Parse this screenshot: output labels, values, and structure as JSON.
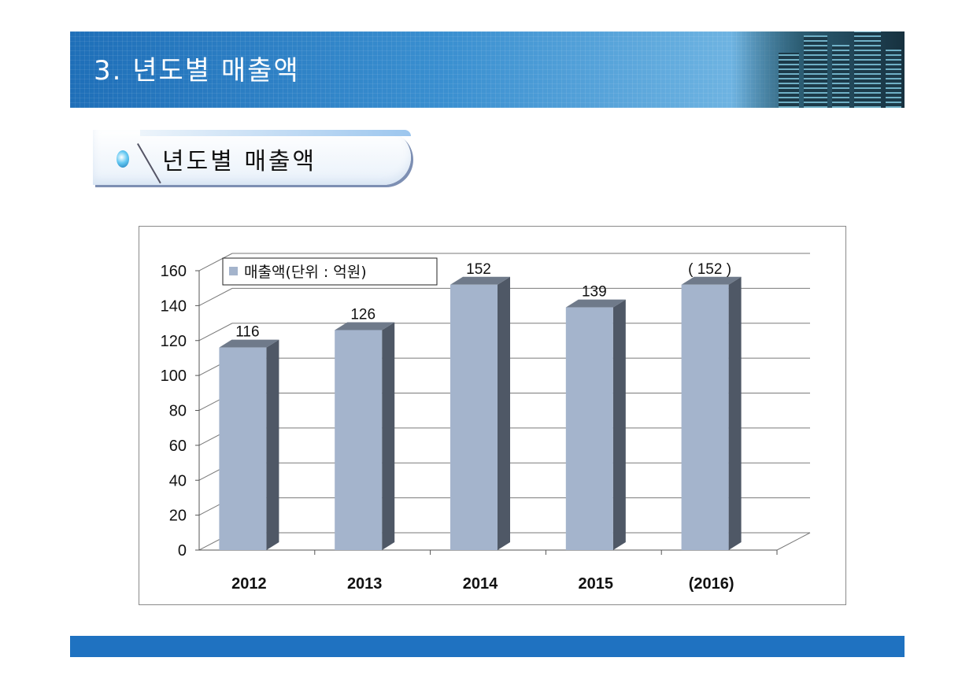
{
  "header": {
    "title": "3. 년도별 매출액"
  },
  "section": {
    "label": "년도별 매출액"
  },
  "chart_data": {
    "type": "bar",
    "categories": [
      "2012",
      "2013",
      "2014",
      "2015",
      "(2016)"
    ],
    "series": [
      {
        "name": "매출액(단위 : 억원)",
        "values": [
          116,
          126,
          152,
          139,
          152
        ]
      }
    ],
    "data_labels": [
      "116",
      "126",
      "152",
      "139",
      "( 152 )"
    ],
    "ylim": [
      0,
      160
    ],
    "yticks": [
      0,
      20,
      40,
      60,
      80,
      100,
      120,
      140,
      160
    ],
    "grid": true,
    "legend": "top-left",
    "colors": {
      "bar_front": "#a4b4cc",
      "bar_side": "#4f5866",
      "bar_top": "#6f7a8a"
    }
  }
}
